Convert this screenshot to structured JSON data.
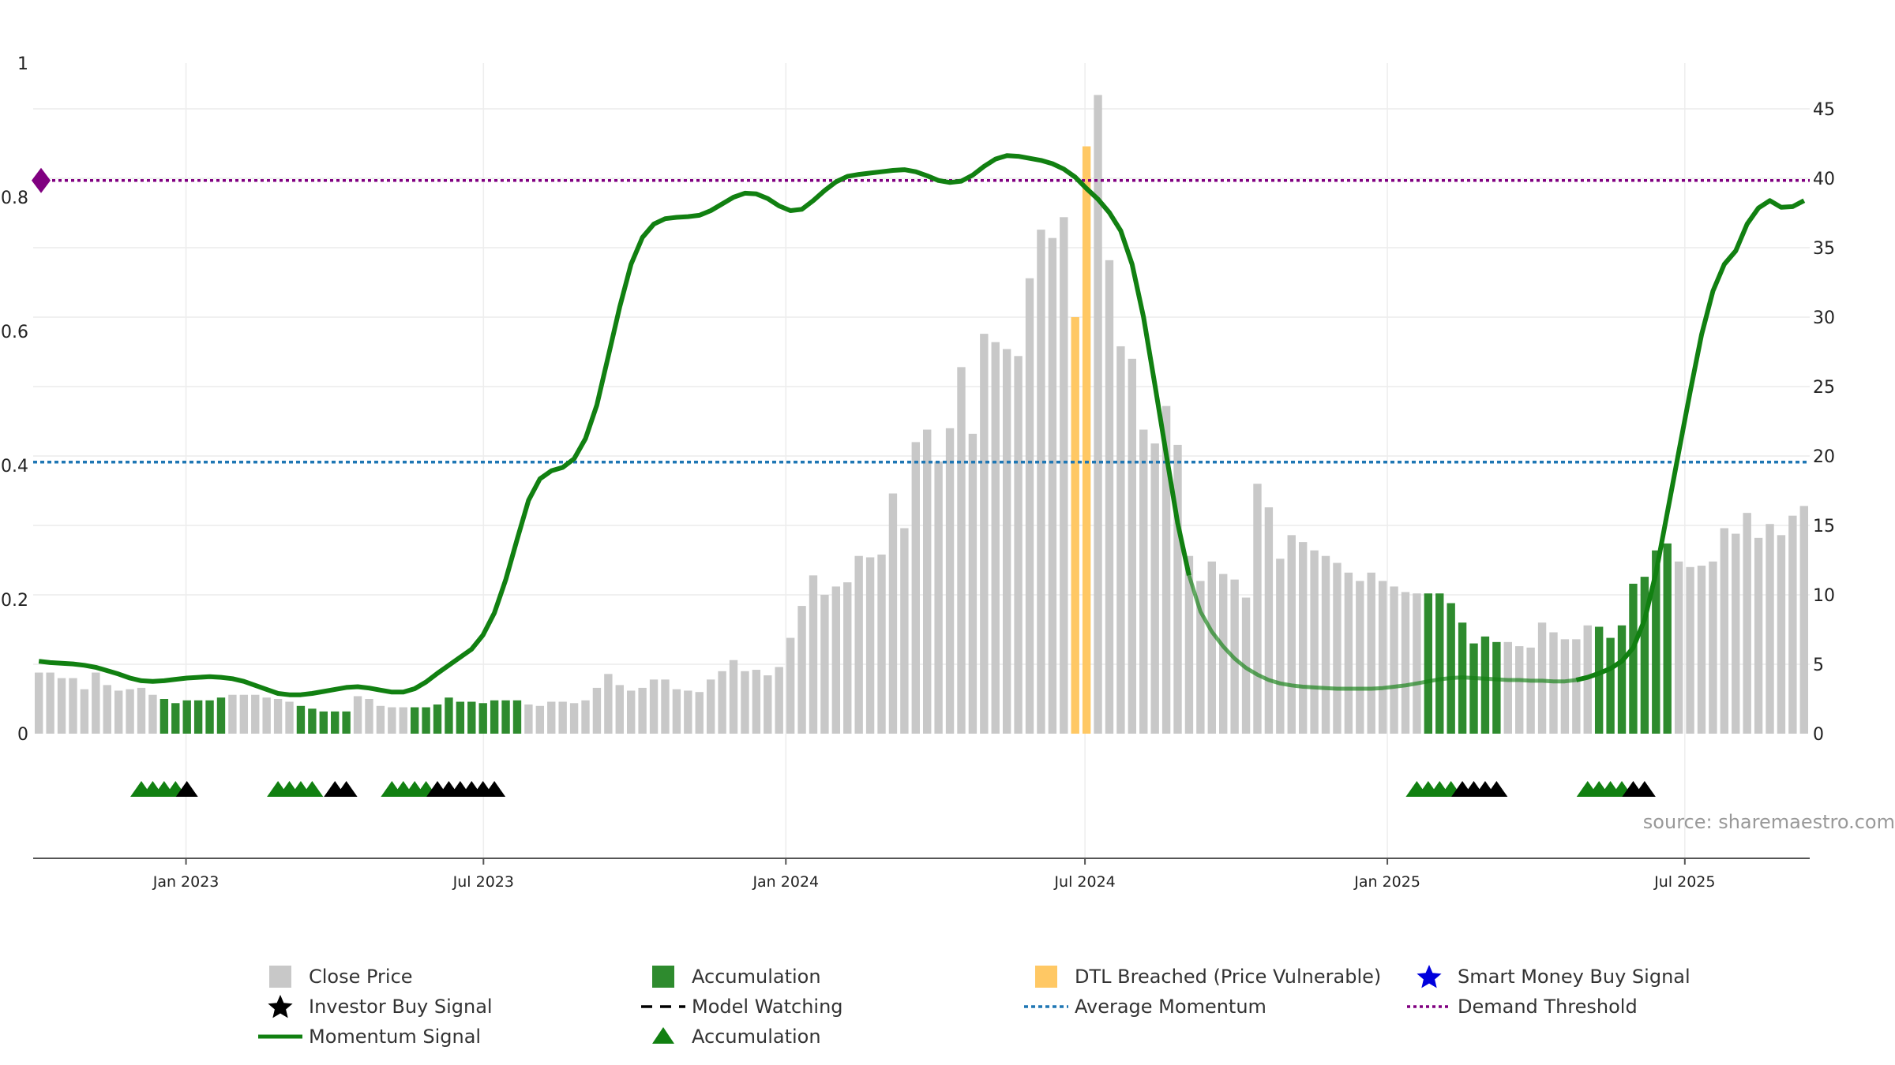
{
  "source_text": "source: sharemaestro.com",
  "colors": {
    "close_price": "#c8c8c8",
    "accumulation": "#2e8b2e",
    "dtl_breached": "#ffc864",
    "momentum": "#118011",
    "average_momentum": "#1f77b4",
    "demand_threshold": "#800080",
    "smart_money": "#0000dd",
    "investor_signal": "#000000"
  },
  "chart_data": {
    "type": "bar",
    "left_axis": {
      "ylim": [
        0,
        1.0
      ],
      "ticks": [
        "0",
        "0.2",
        "0.4",
        "0.6",
        "0.8",
        "1"
      ]
    },
    "right_axis": {
      "ylim": [
        0,
        46
      ],
      "ticks": [
        "0",
        "5",
        "10",
        "15",
        "20",
        "25",
        "30",
        "35",
        "40",
        "45"
      ]
    },
    "x_axis": {
      "start": "2022-09-30",
      "end": "2025-09-15",
      "ticks": [
        {
          "date": "2023-01-01",
          "label": "Jan 2023"
        },
        {
          "date": "2023-07-01",
          "label": "Jul 2023"
        },
        {
          "date": "2024-01-01",
          "label": "Jan 2024"
        },
        {
          "date": "2024-07-01",
          "label": "Jul 2024"
        },
        {
          "date": "2025-01-01",
          "label": "Jan 2025"
        },
        {
          "date": "2025-07-01",
          "label": "Jul 2025"
        }
      ]
    },
    "grid": true,
    "legend_placement": "bottom",
    "close_price": [
      4.4,
      4.4,
      4.0,
      4.0,
      3.2,
      4.4,
      3.5,
      3.1,
      3.2,
      3.3,
      2.8,
      2.5,
      2.2,
      2.4,
      2.4,
      2.4,
      2.6,
      2.8,
      2.8,
      2.8,
      2.6,
      2.5,
      2.3,
      2.0,
      1.8,
      1.6,
      1.6,
      1.6,
      2.7,
      2.5,
      2.0,
      1.9,
      1.9,
      1.9,
      1.9,
      2.1,
      2.6,
      2.3,
      2.3,
      2.2,
      2.4,
      2.4,
      2.4,
      2.1,
      2.0,
      2.3,
      2.3,
      2.2,
      2.4,
      3.3,
      4.3,
      3.5,
      3.1,
      3.3,
      3.9,
      3.9,
      3.2,
      3.1,
      3.0,
      3.9,
      4.5,
      5.3,
      4.5,
      4.6,
      4.2,
      4.8,
      6.9,
      9.2,
      11.4,
      10.0,
      10.6,
      10.9,
      12.8,
      12.7,
      12.9,
      17.3,
      14.8,
      21.0,
      21.9,
      19.6,
      22.0,
      26.4,
      21.6,
      28.8,
      28.2,
      27.7,
      27.2,
      32.8,
      36.3,
      35.7,
      37.2,
      30.0,
      42.3,
      46.0,
      34.1,
      27.9,
      27.0,
      21.9,
      20.9,
      23.6,
      20.8,
      12.8,
      11.0,
      12.4,
      11.5,
      11.1,
      9.8,
      18.0,
      16.3,
      12.6,
      14.3,
      13.8,
      13.2,
      12.8,
      12.3,
      11.6,
      11.0,
      11.6,
      11.0,
      10.6,
      10.2,
      10.1,
      10.1,
      10.1,
      9.4,
      8.0,
      6.5,
      7.0,
      6.6,
      6.6,
      6.3,
      6.2,
      8.0,
      7.3,
      6.8,
      6.8,
      7.8,
      7.7,
      6.9,
      7.8,
      10.8,
      11.3,
      13.2,
      13.7,
      12.4,
      12.0,
      12.1,
      12.4,
      14.8,
      14.4,
      15.9,
      14.1,
      15.1,
      14.3,
      15.7,
      16.4
    ],
    "accumulation_weeks": [
      11,
      12,
      13,
      14,
      15,
      16,
      23,
      24,
      25,
      26,
      27,
      33,
      34,
      35,
      36,
      37,
      38,
      39,
      40,
      41,
      42,
      122,
      123,
      124,
      125,
      126,
      127,
      128,
      137,
      138,
      139,
      140,
      141,
      142,
      143
    ],
    "dtl_breached_weeks": [
      91,
      92
    ],
    "momentum_signal": [
      0.108,
      0.106,
      0.105,
      0.104,
      0.102,
      0.099,
      0.094,
      0.089,
      0.083,
      0.079,
      0.078,
      0.079,
      0.081,
      0.083,
      0.084,
      0.085,
      0.084,
      0.082,
      0.078,
      0.072,
      0.066,
      0.06,
      0.058,
      0.058,
      0.06,
      0.063,
      0.066,
      0.069,
      0.07,
      0.068,
      0.065,
      0.062,
      0.062,
      0.067,
      0.077,
      0.09,
      0.102,
      0.114,
      0.126,
      0.147,
      0.18,
      0.23,
      0.29,
      0.348,
      0.38,
      0.392,
      0.397,
      0.41,
      0.44,
      0.49,
      0.563,
      0.636,
      0.7,
      0.74,
      0.76,
      0.768,
      0.77,
      0.771,
      0.773,
      0.78,
      0.79,
      0.8,
      0.806,
      0.805,
      0.798,
      0.787,
      0.78,
      0.782,
      0.795,
      0.81,
      0.823,
      0.831,
      0.834,
      0.836,
      0.838,
      0.84,
      0.841,
      0.838,
      0.832,
      0.825,
      0.822,
      0.824,
      0.833,
      0.846,
      0.857,
      0.862,
      0.861,
      0.858,
      0.855,
      0.85,
      0.842,
      0.83,
      0.813,
      0.797,
      0.777,
      0.75,
      0.7,
      0.621,
      0.52,
      0.416,
      0.314,
      0.236,
      0.182,
      0.152,
      0.13,
      0.112,
      0.098,
      0.088,
      0.08,
      0.075,
      0.072,
      0.07,
      0.069,
      0.068,
      0.067,
      0.067,
      0.067,
      0.067,
      0.068,
      0.07,
      0.072,
      0.075,
      0.078,
      0.081,
      0.083,
      0.084,
      0.083,
      0.082,
      0.081,
      0.08,
      0.08,
      0.079,
      0.079,
      0.078,
      0.078,
      0.08,
      0.084,
      0.09,
      0.097,
      0.108,
      0.128,
      0.17,
      0.24,
      0.33,
      0.42,
      0.51,
      0.595,
      0.66,
      0.7,
      0.72,
      0.76,
      0.784,
      0.795,
      0.785,
      0.786,
      0.795
    ],
    "momentum_faded_weeks": [
      101,
      135
    ],
    "average_momentum": 0.405,
    "demand_threshold": 0.825,
    "accumulation_triangles": [
      9,
      10,
      11,
      12,
      21,
      22,
      23,
      24,
      31,
      32,
      33,
      34,
      121,
      122,
      123,
      124,
      136,
      137,
      138,
      139
    ],
    "investor_buy_signals": [
      13,
      26,
      27,
      35,
      36,
      37,
      38,
      39,
      40,
      125,
      126,
      127,
      128,
      140,
      141
    ],
    "smart_money_signals": [],
    "legend": [
      {
        "symbol": "close-price",
        "label": "Close Price"
      },
      {
        "symbol": "accumulation-bar",
        "label": "Accumulation"
      },
      {
        "symbol": "dtl-breached",
        "label": "DTL Breached (Price Vulnerable)"
      },
      {
        "symbol": "smart-money-star",
        "label": "Smart Money Buy Signal"
      },
      {
        "symbol": "investor-star",
        "label": "Investor Buy Signal"
      },
      {
        "symbol": "model-watching",
        "label": "Model Watching"
      },
      {
        "symbol": "average-momentum",
        "label": "Average Momentum"
      },
      {
        "symbol": "demand-threshold",
        "label": "Demand Threshold"
      },
      {
        "symbol": "momentum-signal",
        "label": "Momentum Signal"
      },
      {
        "symbol": "accumulation-triangle",
        "label": "Accumulation"
      }
    ]
  }
}
